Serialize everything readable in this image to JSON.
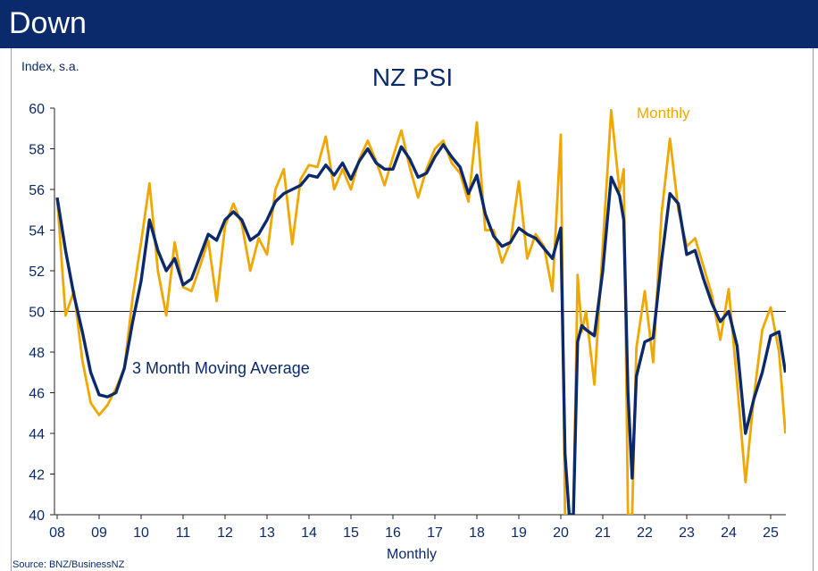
{
  "header": {
    "title": "Down"
  },
  "colors": {
    "header_bg": "#0b2a6b",
    "monthly": "#f0a800",
    "moving_avg": "#0b2a6b",
    "reference": "#222222"
  },
  "chart_data": {
    "type": "line",
    "title": "NZ PSI",
    "ylabel": "Index, s.a.",
    "xlabel": "Monthly",
    "source": "Source: BNZ/BusinessNZ",
    "ylim": [
      40,
      60
    ],
    "yticks": [
      "40",
      "42",
      "44",
      "46",
      "48",
      "50",
      "52",
      "54",
      "56",
      "58",
      "60"
    ],
    "xlim": [
      8,
      25.4
    ],
    "xticks": [
      "08",
      "09",
      "10",
      "11",
      "12",
      "13",
      "14",
      "15",
      "16",
      "17",
      "18",
      "19",
      "20",
      "21",
      "22",
      "23",
      "24",
      "25"
    ],
    "reference_line": 50,
    "annotations": {
      "monthly_label": "Monthly",
      "avg_label": "3 Month Moving Average"
    },
    "series": [
      {
        "name": "Monthly",
        "x": [
          8.0,
          8.2,
          8.4,
          8.6,
          8.8,
          9.0,
          9.2,
          9.4,
          9.6,
          9.8,
          10.0,
          10.2,
          10.4,
          10.6,
          10.8,
          11.0,
          11.2,
          11.4,
          11.6,
          11.8,
          12.0,
          12.2,
          12.4,
          12.6,
          12.8,
          13.0,
          13.2,
          13.4,
          13.6,
          13.8,
          14.0,
          14.2,
          14.4,
          14.6,
          14.8,
          15.0,
          15.2,
          15.4,
          15.6,
          15.8,
          16.0,
          16.2,
          16.4,
          16.6,
          16.8,
          17.0,
          17.2,
          17.4,
          17.6,
          17.8,
          18.0,
          18.2,
          18.4,
          18.6,
          18.8,
          19.0,
          19.2,
          19.4,
          19.6,
          19.8,
          20.0,
          20.1,
          20.2,
          20.3,
          20.4,
          20.5,
          20.6,
          20.8,
          21.0,
          21.2,
          21.4,
          21.5,
          21.6,
          21.7,
          21.8,
          22.0,
          22.2,
          22.4,
          22.6,
          22.8,
          23.0,
          23.2,
          23.4,
          23.6,
          23.8,
          24.0,
          24.2,
          24.4,
          24.6,
          24.8,
          25.0,
          25.2,
          25.35
        ],
        "values": [
          55.6,
          49.8,
          51.0,
          47.6,
          45.5,
          44.9,
          45.4,
          46.2,
          47.2,
          50.7,
          53.4,
          56.3,
          52.0,
          49.8,
          53.4,
          51.2,
          51.0,
          52.2,
          53.5,
          50.5,
          54.2,
          55.3,
          54.3,
          52.0,
          53.6,
          52.8,
          56.0,
          57.0,
          53.3,
          56.5,
          57.2,
          57.1,
          58.6,
          56.0,
          57.0,
          56.0,
          57.5,
          58.4,
          57.4,
          56.2,
          57.6,
          58.9,
          57.1,
          55.6,
          57.0,
          58.0,
          58.4,
          57.3,
          56.8,
          55.4,
          59.3,
          54.0,
          54.0,
          52.4,
          53.4,
          56.4,
          52.6,
          53.8,
          53.2,
          51.0,
          58.7,
          40.0,
          40.0,
          40.0,
          51.8,
          49.0,
          50.0,
          46.4,
          53.2,
          59.9,
          55.9,
          57.0,
          40.0,
          40.0,
          48.2,
          51.0,
          47.5,
          54.8,
          58.5,
          55.0,
          53.2,
          53.6,
          52.2,
          50.8,
          48.6,
          51.1,
          46.5,
          41.6,
          45.8,
          49.1,
          50.2,
          48.0,
          44.0
        ]
      },
      {
        "name": "3 Month Moving Average",
        "x": [
          8.0,
          8.2,
          8.4,
          8.6,
          8.8,
          9.0,
          9.2,
          9.4,
          9.6,
          9.8,
          10.0,
          10.2,
          10.4,
          10.6,
          10.8,
          11.0,
          11.2,
          11.4,
          11.6,
          11.8,
          12.0,
          12.2,
          12.4,
          12.6,
          12.8,
          13.0,
          13.2,
          13.4,
          13.6,
          13.8,
          14.0,
          14.2,
          14.4,
          14.6,
          14.8,
          15.0,
          15.2,
          15.4,
          15.6,
          15.8,
          16.0,
          16.2,
          16.4,
          16.6,
          16.8,
          17.0,
          17.2,
          17.4,
          17.6,
          17.8,
          18.0,
          18.2,
          18.4,
          18.6,
          18.8,
          19.0,
          19.2,
          19.4,
          19.6,
          19.8,
          20.0,
          20.1,
          20.2,
          20.3,
          20.4,
          20.5,
          20.6,
          20.8,
          21.0,
          21.2,
          21.4,
          21.5,
          21.6,
          21.7,
          21.8,
          22.0,
          22.2,
          22.4,
          22.6,
          22.8,
          23.0,
          23.2,
          23.4,
          23.6,
          23.8,
          24.0,
          24.2,
          24.4,
          24.6,
          24.8,
          25.0,
          25.2,
          25.35
        ],
        "values": [
          55.6,
          53.0,
          50.8,
          49.0,
          47.0,
          45.9,
          45.8,
          46.0,
          47.2,
          49.5,
          51.5,
          54.5,
          53.0,
          52.0,
          52.6,
          51.3,
          51.6,
          52.7,
          53.8,
          53.5,
          54.5,
          54.9,
          54.5,
          53.5,
          53.8,
          54.5,
          55.4,
          55.8,
          56.0,
          56.2,
          56.7,
          56.6,
          57.2,
          56.7,
          57.3,
          56.5,
          57.4,
          58.0,
          57.3,
          57.0,
          57.0,
          58.1,
          57.5,
          56.6,
          56.8,
          57.6,
          58.2,
          57.6,
          57.1,
          55.8,
          56.7,
          54.8,
          53.7,
          53.2,
          53.4,
          54.1,
          53.8,
          53.6,
          53.1,
          52.6,
          54.1,
          43.0,
          40.0,
          40.0,
          48.5,
          49.3,
          49.1,
          48.8,
          52.0,
          56.6,
          55.7,
          54.5,
          46.0,
          41.8,
          46.8,
          48.5,
          48.7,
          52.5,
          55.8,
          55.3,
          52.8,
          53.0,
          51.6,
          50.4,
          49.5,
          50.0,
          48.3,
          44.0,
          45.7,
          47.0,
          48.8,
          49.0,
          47.0
        ]
      }
    ]
  }
}
